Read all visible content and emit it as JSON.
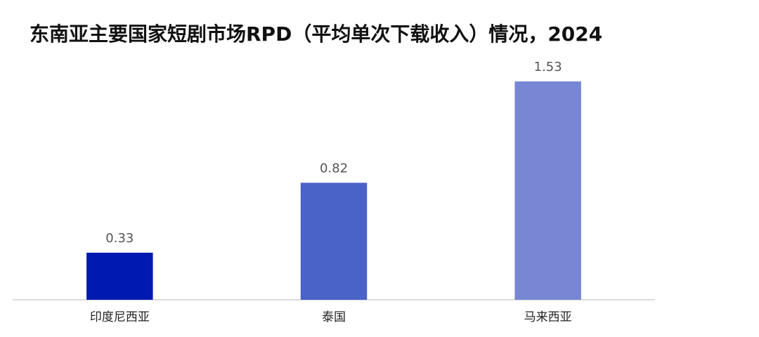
{
  "chart_data": {
    "type": "bar",
    "title": "东南亚主要国家短剧市场RPD（平均单次下载收入）情况，2024",
    "categories": [
      "印度尼西亚",
      "泰国",
      "马来西亚"
    ],
    "values": [
      0.33,
      0.82,
      1.53
    ],
    "colors": [
      "#0019b0",
      "#4a63c8",
      "#7787d4"
    ]
  }
}
